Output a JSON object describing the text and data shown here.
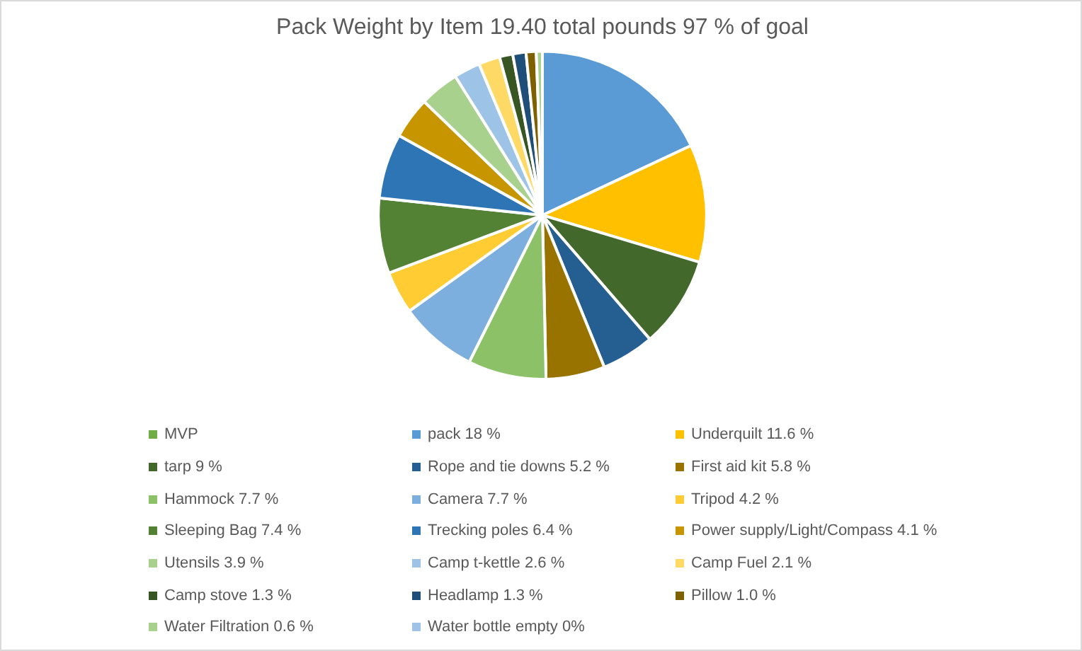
{
  "chart_data": {
    "type": "pie",
    "title": "Pack Weight by Item 19.40 total pounds 97 % of goal",
    "categories": [
      "MVP",
      "pack 18 %",
      "Underquilt 11.6 %",
      "tarp 9 %",
      "Rope and tie downs 5.2 %",
      "First aid kit 5.8 %",
      "Hammock 7.7 %",
      "Camera 7.7 %",
      "Tripod 4.2 %",
      "Sleeping Bag 7.4 %",
      "Trecking poles 6.4 %",
      "Power supply/Light/Compass 4.1 %",
      "Utensils 3.9 %",
      "Camp t-kettle 2.6 %",
      "Camp Fuel 2.1 %",
      "Camp stove 1.3 %",
      "Headlamp 1.3 %",
      "Pillow 1.0 %",
      "Water Filtration 0.6 %",
      "Water bottle empty 0%"
    ],
    "values": [
      0,
      18,
      11.6,
      9,
      5.2,
      5.8,
      7.7,
      7.7,
      4.2,
      7.4,
      6.4,
      4.1,
      3.9,
      2.6,
      2.1,
      1.3,
      1.3,
      1.0,
      0.6,
      0
    ],
    "colors": [
      "#70ad47",
      "#5b9bd5",
      "#ffc000",
      "#43682b",
      "#255e91",
      "#997300",
      "#8cc168",
      "#7cafdd",
      "#ffcd33",
      "#548235",
      "#2e75b6",
      "#c69500",
      "#a9d18e",
      "#9dc3e6",
      "#ffd966",
      "#375623",
      "#1f4e79",
      "#7f6000",
      "#a9d18e",
      "#9dc3e6"
    ],
    "legend": "bottom"
  }
}
